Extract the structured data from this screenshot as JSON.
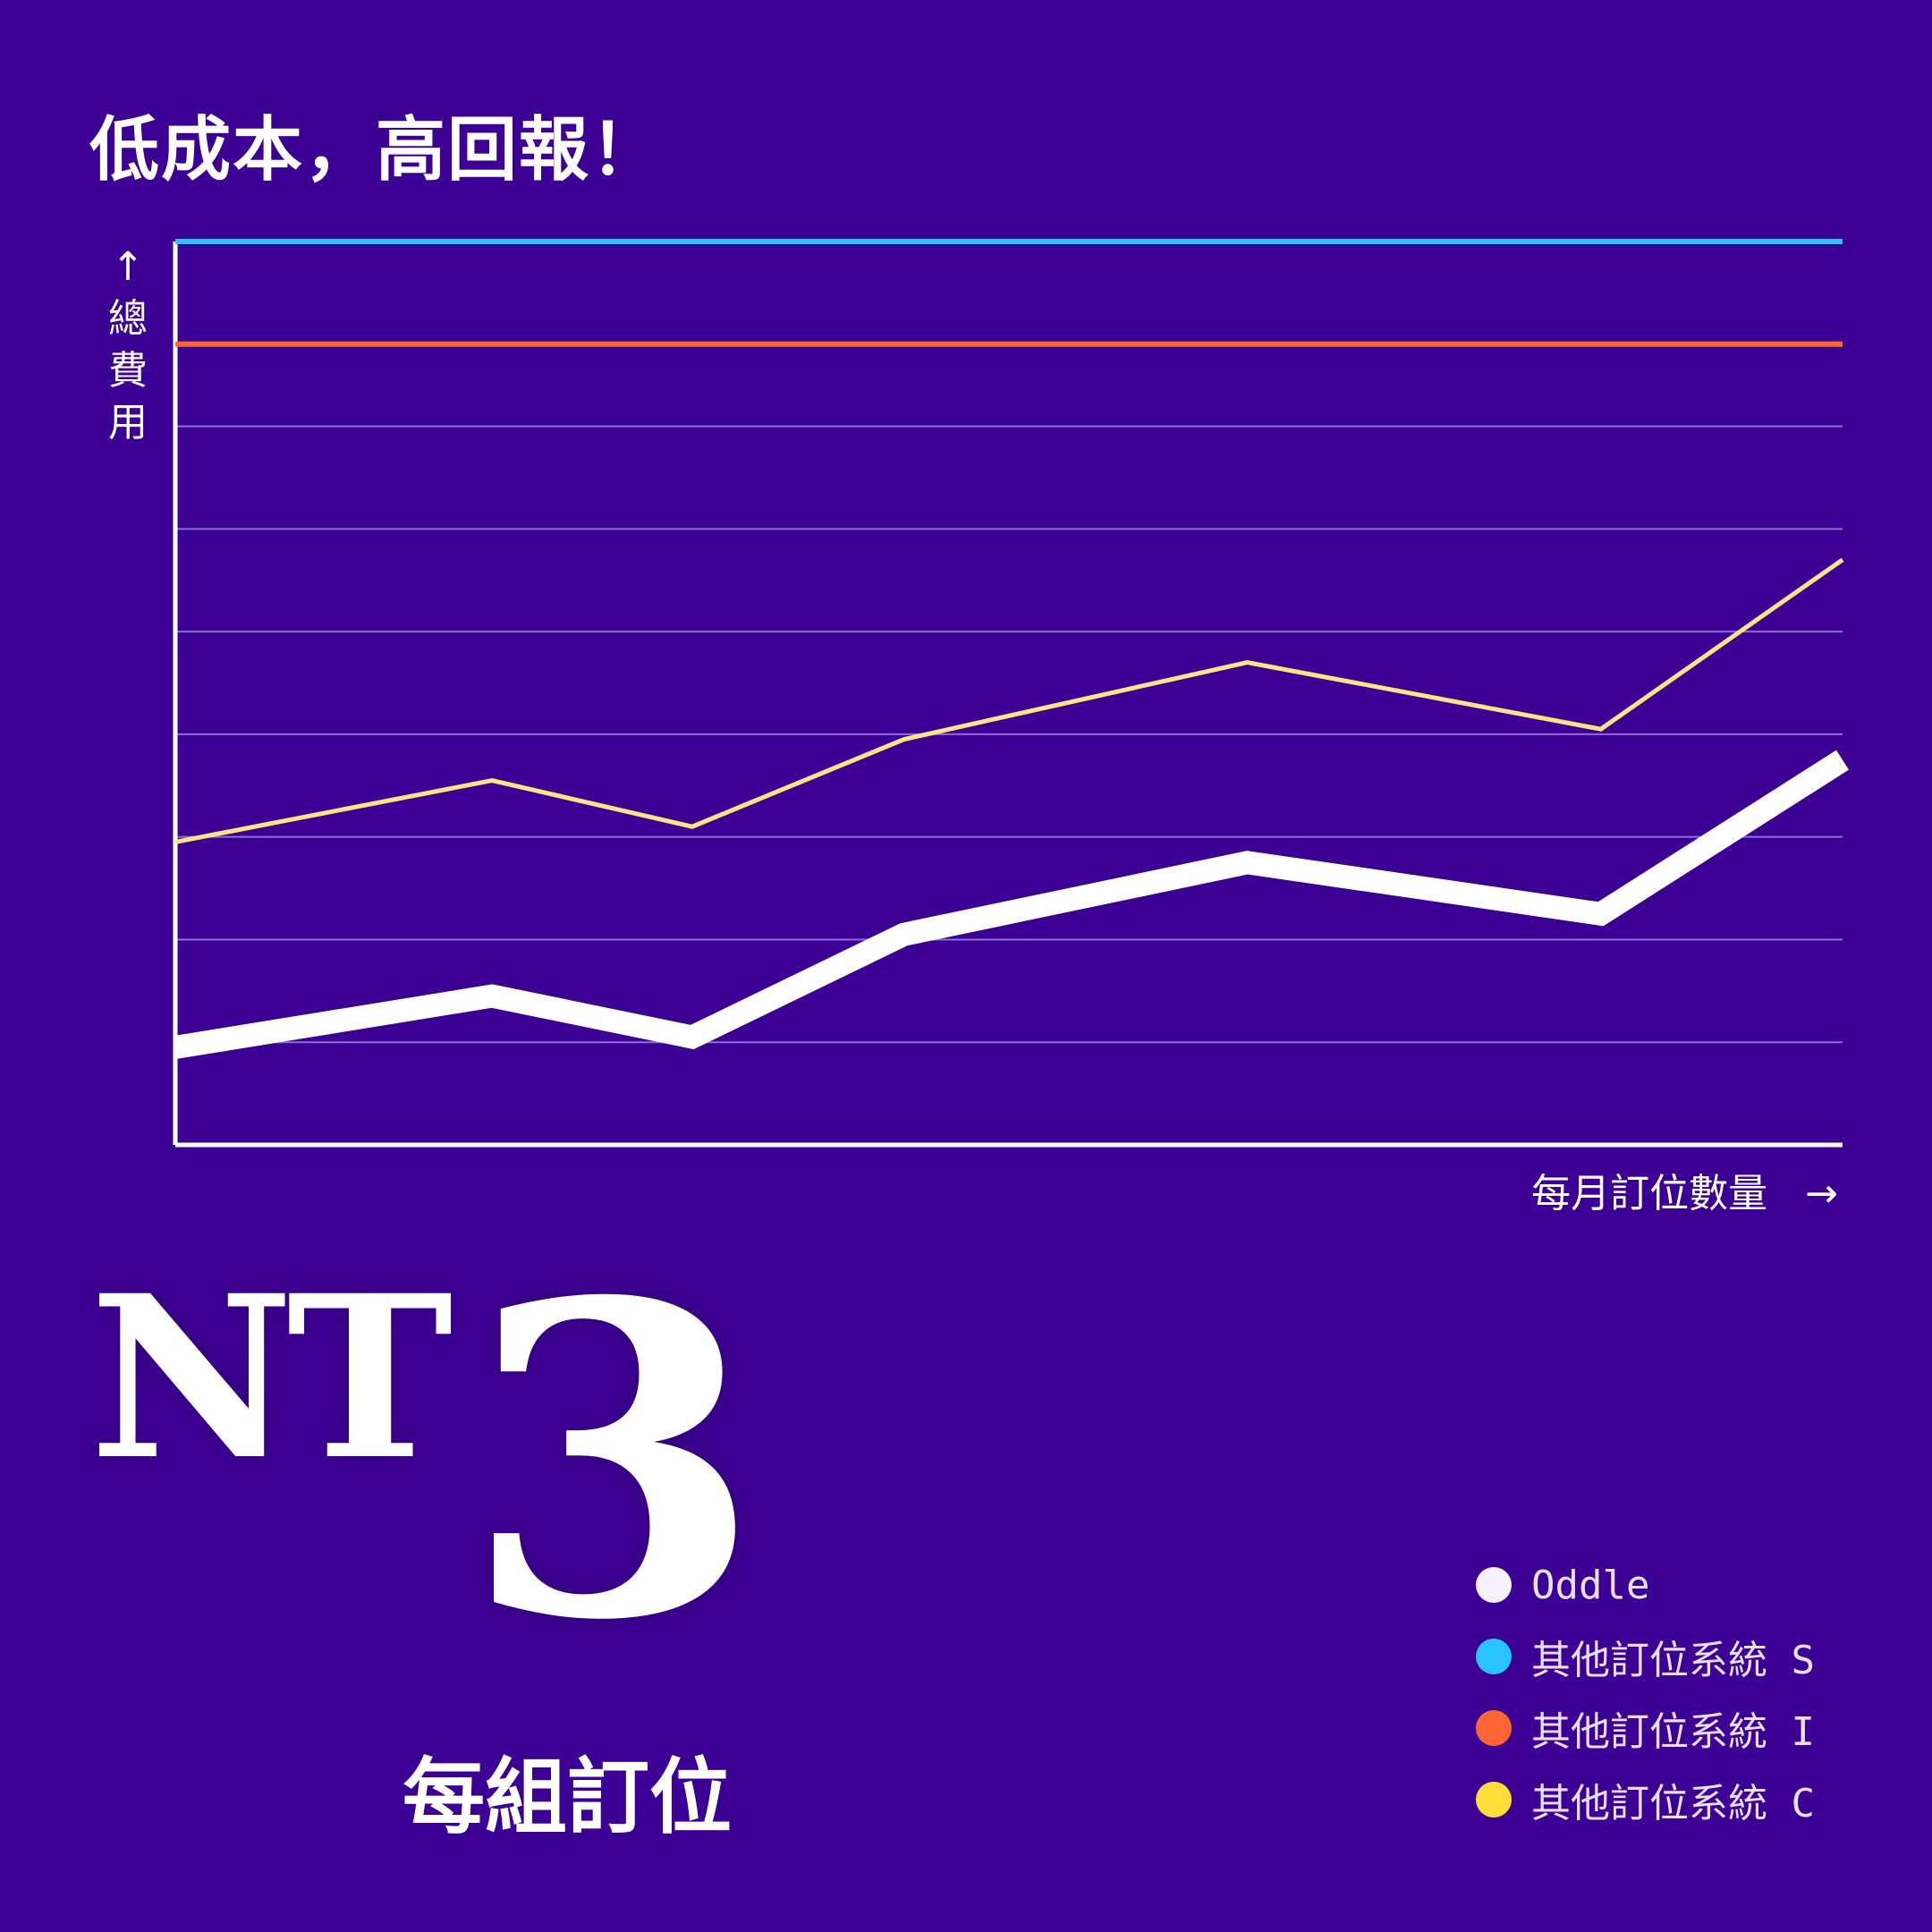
{
  "headline": "低成本，高回報！",
  "axis": {
    "y_arrow": "↑",
    "y_chars": [
      "總",
      "費",
      "用"
    ],
    "x_label": "每月訂位數量",
    "x_arrow": "→"
  },
  "price": {
    "currency": "NT",
    "amount": "3",
    "unit": "每組訂位"
  },
  "legend": [
    {
      "label": "Oddle",
      "color": "#f6f1ff"
    },
    {
      "label": "其他訂位系統 S",
      "color": "#29c3ff"
    },
    {
      "label": "其他訂位系統 I",
      "color": "#ff6633"
    },
    {
      "label": "其他訂位系統 C",
      "color": "#ffde3a"
    }
  ],
  "chart_data": {
    "type": "line",
    "x": [
      0,
      1,
      2,
      3,
      4,
      5,
      6
    ],
    "ylim": [
      0,
      8.8
    ],
    "grid": true,
    "series": [
      {
        "name": "Oddle",
        "color": "#ffffff",
        "values": [
          0.95,
          1.45,
          1.05,
          2.05,
          2.75,
          2.25,
          3.75
        ]
      },
      {
        "name": "其他訂位系統 S",
        "color": "#29c3ff",
        "values": [
          8.8,
          8.8,
          8.8,
          8.8,
          8.8,
          8.8,
          8.8
        ]
      },
      {
        "name": "其他訂位系統 I",
        "color": "#ff6633",
        "values": [
          7.8,
          7.8,
          7.8,
          7.8,
          7.8,
          7.8,
          7.8
        ]
      },
      {
        "name": "其他訂位系統 C",
        "color": "#ffe485",
        "values": [
          2.95,
          3.55,
          3.1,
          3.95,
          4.7,
          4.05,
          5.7
        ]
      }
    ]
  }
}
